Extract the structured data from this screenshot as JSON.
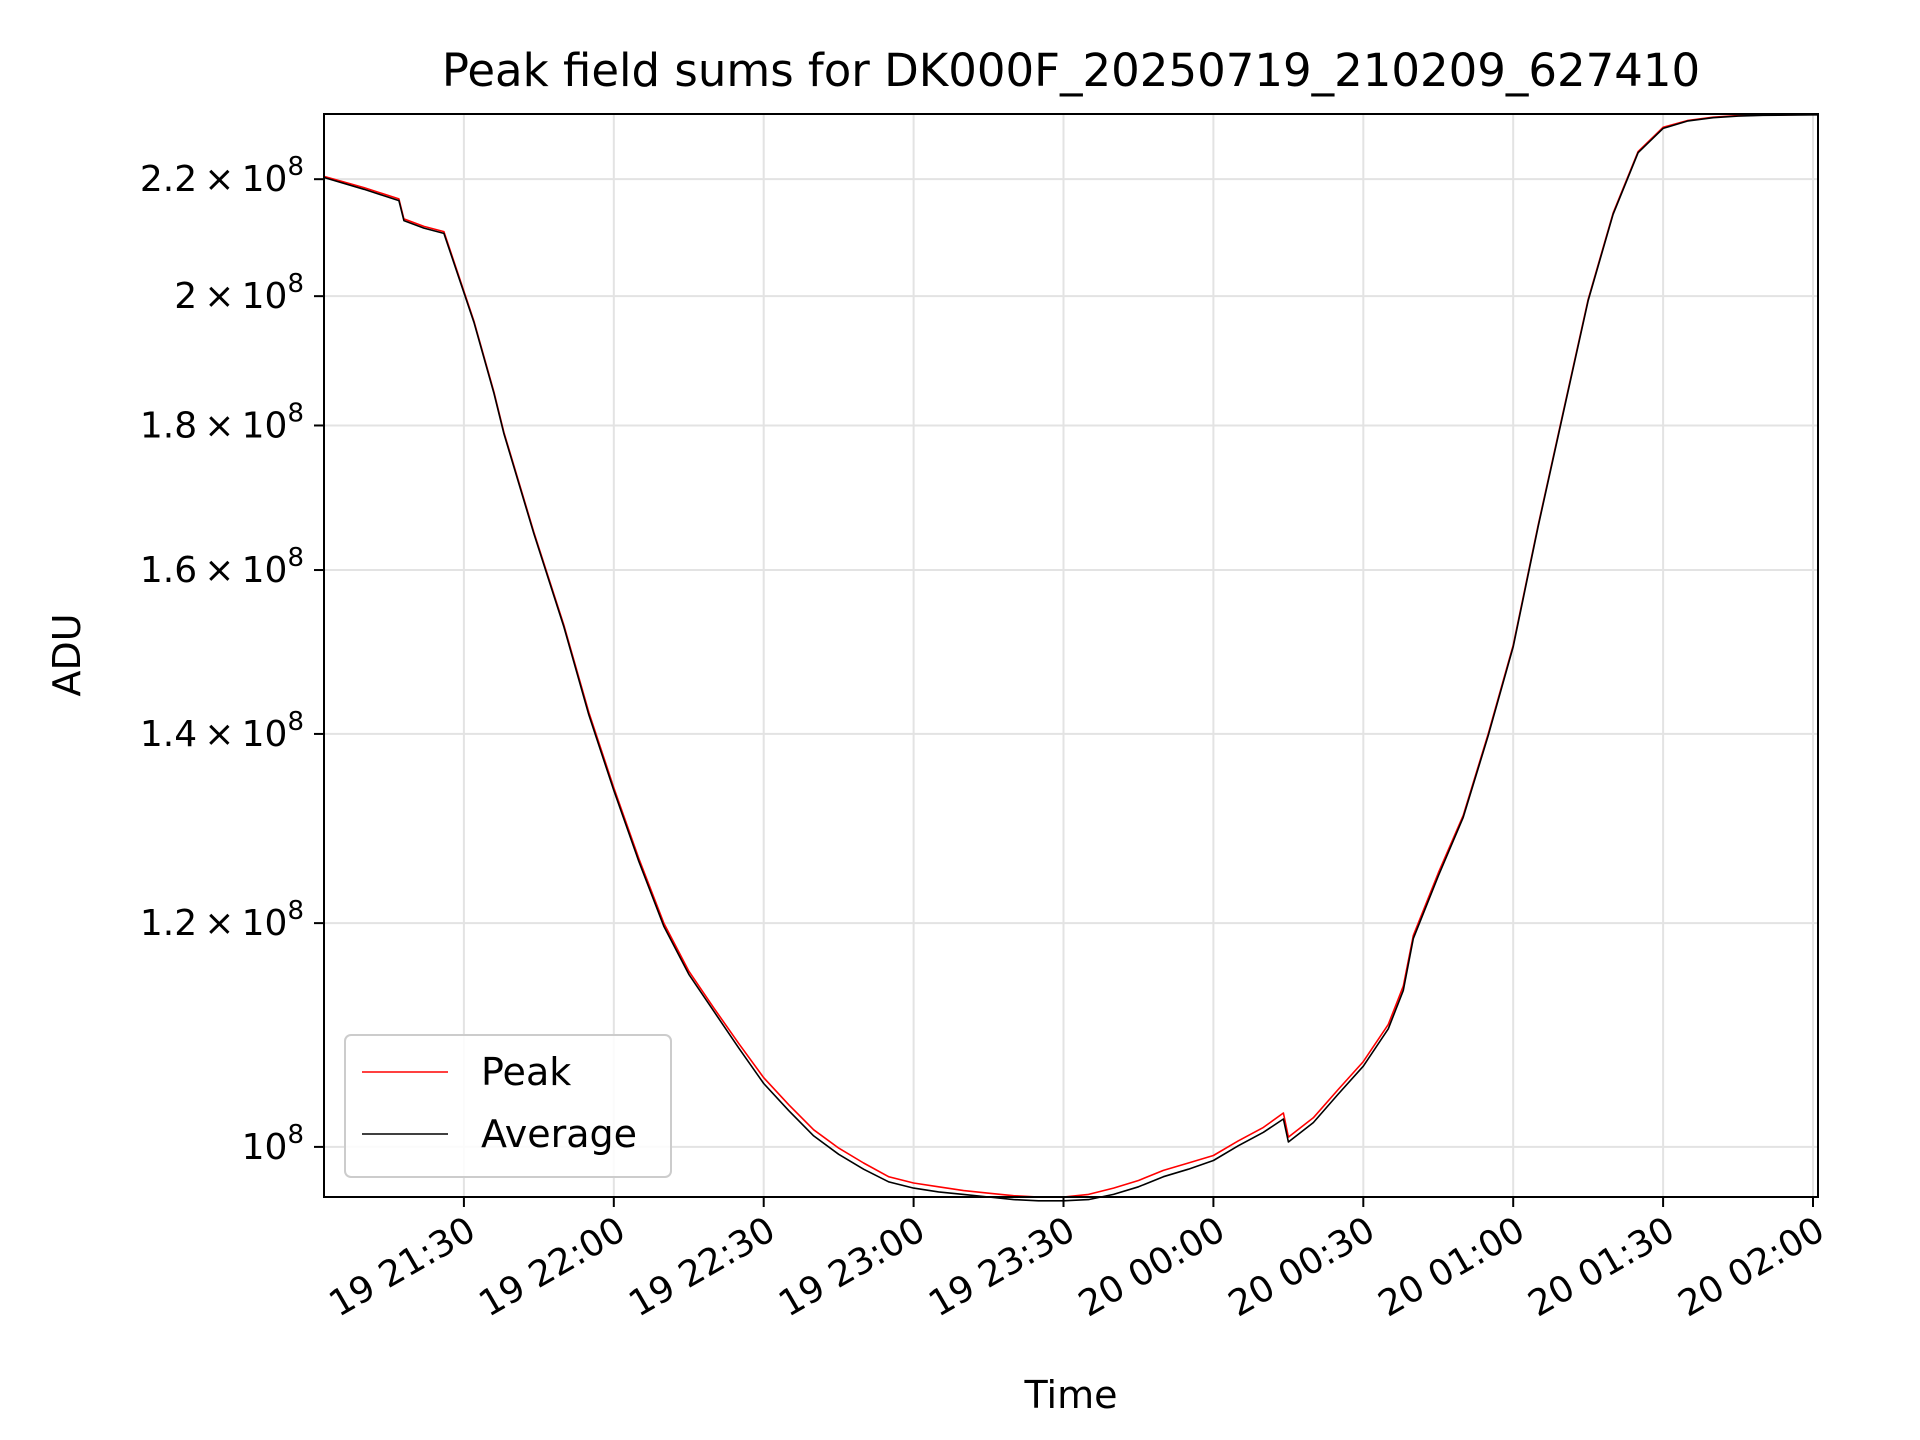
{
  "chart_data": {
    "type": "line",
    "title": "Peak field sums for DK000F_20250719_210209_627410",
    "xlabel": "Time",
    "ylabel": "ADU",
    "yscale": "log",
    "grid": true,
    "legend_position": "lower-left",
    "xlim": [
      "2025-07-19 21:02",
      "2025-07-20 02:01"
    ],
    "ylim": [
      96000000,
      232000000
    ],
    "x_ticks": [
      {
        "value": "2025-07-19 21:30",
        "label": "19 21:30"
      },
      {
        "value": "2025-07-19 22:00",
        "label": "19 22:00"
      },
      {
        "value": "2025-07-19 22:30",
        "label": "19 22:30"
      },
      {
        "value": "2025-07-19 23:00",
        "label": "19 23:00"
      },
      {
        "value": "2025-07-19 23:30",
        "label": "19 23:30"
      },
      {
        "value": "2025-07-20 00:00",
        "label": "20 00:00"
      },
      {
        "value": "2025-07-20 00:30",
        "label": "20 00:30"
      },
      {
        "value": "2025-07-20 01:00",
        "label": "20 01:00"
      },
      {
        "value": "2025-07-20 01:30",
        "label": "20 01:30"
      },
      {
        "value": "2025-07-20 02:00",
        "label": "20 02:00"
      }
    ],
    "y_ticks": [
      {
        "value": 100000000,
        "mantissa": "",
        "exp": "8"
      },
      {
        "value": 120000000,
        "mantissa": "1.2",
        "exp": "8"
      },
      {
        "value": 140000000,
        "mantissa": "1.4",
        "exp": "8"
      },
      {
        "value": 160000000,
        "mantissa": "1.6",
        "exp": "8"
      },
      {
        "value": 180000000,
        "mantissa": "1.8",
        "exp": "8"
      },
      {
        "value": 200000000,
        "mantissa": "2",
        "exp": "8"
      },
      {
        "value": 220000000,
        "mantissa": "2.2",
        "exp": "8"
      }
    ],
    "series": [
      {
        "name": "Peak",
        "color": "#ff0000",
        "x": [
          "2025-07-19 21:02",
          "2025-07-19 21:10",
          "2025-07-19 21:17",
          "2025-07-19 21:18",
          "2025-07-19 21:22",
          "2025-07-19 21:26",
          "2025-07-19 21:32",
          "2025-07-19 21:36",
          "2025-07-19 21:38",
          "2025-07-19 21:44",
          "2025-07-19 21:50",
          "2025-07-19 21:55",
          "2025-07-19 22:00",
          "2025-07-19 22:05",
          "2025-07-19 22:10",
          "2025-07-19 22:15",
          "2025-07-19 22:20",
          "2025-07-19 22:25",
          "2025-07-19 22:30",
          "2025-07-19 22:35",
          "2025-07-19 22:40",
          "2025-07-19 22:45",
          "2025-07-19 22:50",
          "2025-07-19 22:55",
          "2025-07-19 23:00",
          "2025-07-19 23:05",
          "2025-07-19 23:10",
          "2025-07-19 23:15",
          "2025-07-19 23:20",
          "2025-07-19 23:25",
          "2025-07-19 23:30",
          "2025-07-19 23:35",
          "2025-07-19 23:40",
          "2025-07-19 23:45",
          "2025-07-19 23:50",
          "2025-07-19 23:55",
          "2025-07-20 00:00",
          "2025-07-20 00:05",
          "2025-07-20 00:10",
          "2025-07-20 00:14",
          "2025-07-20 00:15",
          "2025-07-20 00:20",
          "2025-07-20 00:25",
          "2025-07-20 00:30",
          "2025-07-20 00:35",
          "2025-07-20 00:38",
          "2025-07-20 00:40",
          "2025-07-20 00:45",
          "2025-07-20 00:50",
          "2025-07-20 00:55",
          "2025-07-20 01:00",
          "2025-07-20 01:05",
          "2025-07-20 01:10",
          "2025-07-20 01:15",
          "2025-07-20 01:20",
          "2025-07-20 01:25",
          "2025-07-20 01:30",
          "2025-07-20 01:35",
          "2025-07-20 01:40",
          "2025-07-20 01:45",
          "2025-07-20 01:50",
          "2025-07-20 01:55",
          "2025-07-20 02:01"
        ],
        "y": [
          220500000,
          218500000,
          216500000,
          213000000,
          211700000,
          210800000,
          196000000,
          185000000,
          179000000,
          165000000,
          153000000,
          142500000,
          134000000,
          126500000,
          120000000,
          115400000,
          112000000,
          108800000,
          105800000,
          103500000,
          101400000,
          99900000,
          98700000,
          97600000,
          97100000,
          96800000,
          96500000,
          96300000,
          96100000,
          96000000,
          96000000,
          96200000,
          96700000,
          97300000,
          98100000,
          98700000,
          99300000,
          100500000,
          101600000,
          102800000,
          100800000,
          102400000,
          104800000,
          107200000,
          110500000,
          114000000,
          118800000,
          125000000,
          131000000,
          140000000,
          150500000,
          166000000,
          182000000,
          199500000,
          214000000,
          225000000,
          229500000,
          230800000,
          231400000,
          231700000,
          231800000,
          231850000,
          231900000
        ]
      },
      {
        "name": "Average",
        "color": "#000000",
        "x": [
          "2025-07-19 21:02",
          "2025-07-19 21:10",
          "2025-07-19 21:17",
          "2025-07-19 21:18",
          "2025-07-19 21:22",
          "2025-07-19 21:26",
          "2025-07-19 21:32",
          "2025-07-19 21:36",
          "2025-07-19 21:38",
          "2025-07-19 21:44",
          "2025-07-19 21:50",
          "2025-07-19 21:55",
          "2025-07-19 22:00",
          "2025-07-19 22:05",
          "2025-07-19 22:10",
          "2025-07-19 22:15",
          "2025-07-19 22:20",
          "2025-07-19 22:25",
          "2025-07-19 22:30",
          "2025-07-19 22:35",
          "2025-07-19 22:40",
          "2025-07-19 22:45",
          "2025-07-19 22:50",
          "2025-07-19 22:55",
          "2025-07-19 23:00",
          "2025-07-19 23:05",
          "2025-07-19 23:10",
          "2025-07-19 23:15",
          "2025-07-19 23:20",
          "2025-07-19 23:25",
          "2025-07-19 23:30",
          "2025-07-19 23:35",
          "2025-07-19 23:40",
          "2025-07-19 23:45",
          "2025-07-19 23:50",
          "2025-07-19 23:55",
          "2025-07-20 00:00",
          "2025-07-20 00:05",
          "2025-07-20 00:10",
          "2025-07-20 00:14",
          "2025-07-20 00:15",
          "2025-07-20 00:20",
          "2025-07-20 00:25",
          "2025-07-20 00:30",
          "2025-07-20 00:35",
          "2025-07-20 00:38",
          "2025-07-20 00:40",
          "2025-07-20 00:45",
          "2025-07-20 00:50",
          "2025-07-20 00:55",
          "2025-07-20 01:00",
          "2025-07-20 01:05",
          "2025-07-20 01:10",
          "2025-07-20 01:15",
          "2025-07-20 01:20",
          "2025-07-20 01:25",
          "2025-07-20 01:30",
          "2025-07-20 01:35",
          "2025-07-20 01:40",
          "2025-07-20 01:45",
          "2025-07-20 01:50",
          "2025-07-20 01:55",
          "2025-07-20 02:01"
        ],
        "y": [
          220300000,
          218200000,
          216200000,
          212700000,
          211400000,
          210500000,
          195800000,
          184800000,
          178800000,
          164800000,
          152800000,
          142200000,
          133700000,
          126200000,
          119700000,
          115100000,
          111700000,
          108400000,
          105300000,
          103000000,
          100900000,
          99400000,
          98200000,
          97200000,
          96700000,
          96400000,
          96200000,
          96000000,
          95800000,
          95700000,
          95700000,
          95800000,
          96200000,
          96800000,
          97600000,
          98200000,
          98900000,
          100100000,
          101200000,
          102300000,
          100400000,
          102000000,
          104400000,
          106800000,
          110100000,
          113600000,
          118500000,
          124700000,
          130800000,
          139800000,
          150300000,
          165800000,
          181800000,
          199300000,
          213800000,
          224800000,
          229300000,
          230700000,
          231300000,
          231600000,
          231750000,
          231800000,
          231850000
        ]
      }
    ]
  }
}
